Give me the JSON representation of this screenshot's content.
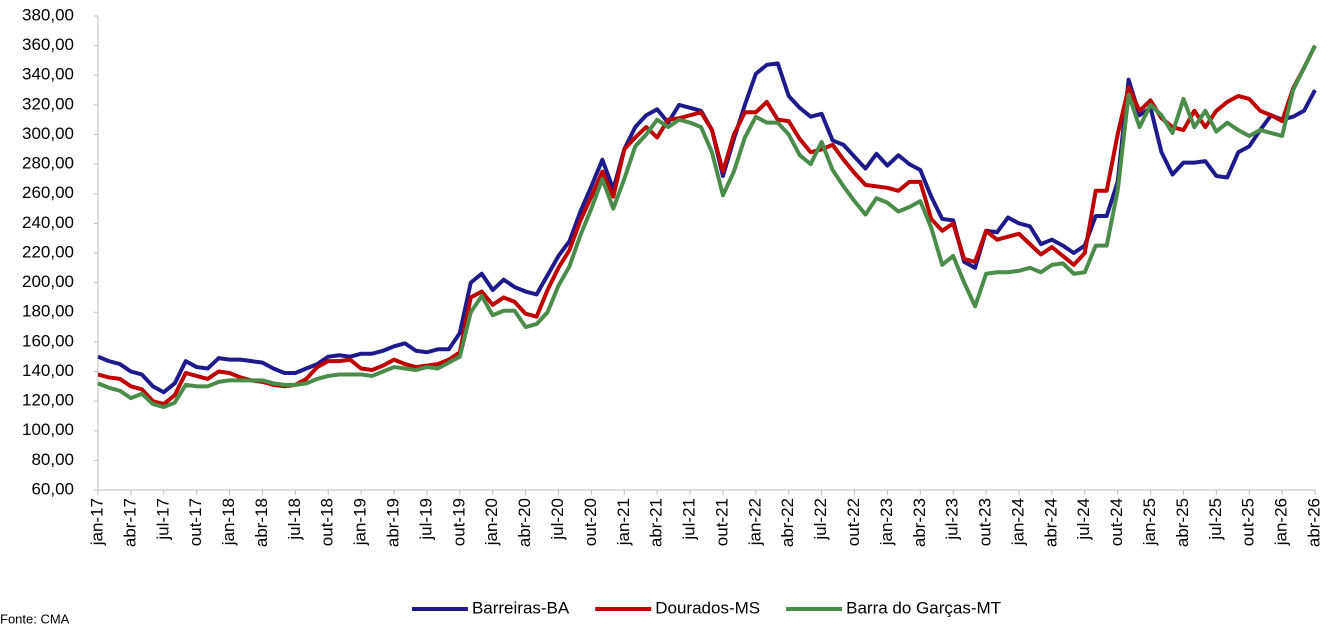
{
  "chart_data": {
    "type": "line",
    "categories": [
      "jan-17",
      null,
      null,
      "abr-17",
      null,
      null,
      "jul-17",
      null,
      null,
      "out-17",
      null,
      null,
      "jan-18",
      null,
      null,
      "abr-18",
      null,
      null,
      "jul-18",
      null,
      null,
      "out-18",
      null,
      null,
      "jan-19",
      null,
      null,
      "abr-19",
      null,
      null,
      "jul-19",
      null,
      null,
      "out-19",
      null,
      null,
      "jan-20",
      null,
      null,
      "abr-20",
      null,
      null,
      "jul-20",
      null,
      null,
      "out-20",
      null,
      null,
      "jan-21",
      null,
      null,
      "abr-21",
      null,
      null,
      "jul-21",
      null,
      null,
      "out-21",
      null,
      null,
      "jan-22",
      null,
      null,
      "abr-22",
      null,
      null,
      "jul-22",
      null,
      null,
      "out-22",
      null,
      null,
      "jan-23",
      null,
      null,
      "abr-23",
      null,
      null,
      "jul-23",
      null,
      null,
      "out-23",
      null,
      null,
      "jan-24",
      null,
      null,
      "abr-24",
      null,
      null,
      "jul-24",
      null,
      null,
      "out-24",
      null,
      null,
      "jan-25",
      null,
      null,
      "abr-25",
      null,
      null,
      "jul-25",
      null,
      null,
      "out-25",
      null,
      null,
      "jan-26",
      null,
      null,
      "abr-26"
    ],
    "series": [
      {
        "name": "Barreiras-BA",
        "color": "#1f1a8c",
        "values": [
          150,
          147,
          145,
          140,
          138,
          130,
          126,
          132,
          147,
          143,
          142,
          149,
          148,
          148,
          147,
          146,
          142,
          139,
          139,
          142,
          145,
          150,
          151,
          150,
          152,
          152,
          154,
          157,
          159,
          154,
          153,
          155,
          155,
          166,
          200,
          206,
          195,
          202,
          197,
          194,
          192,
          205,
          218,
          228,
          248,
          265,
          283,
          263,
          290,
          305,
          313,
          317,
          308,
          320,
          318,
          316,
          303,
          272,
          297,
          320,
          341,
          347,
          348,
          326,
          318,
          312,
          314,
          296,
          293,
          285,
          277,
          287,
          279,
          286,
          280,
          276,
          258,
          243,
          242,
          214,
          210,
          235,
          234,
          244,
          240,
          238,
          226,
          229,
          225,
          220,
          225,
          245,
          245,
          268,
          337,
          313,
          318,
          288,
          273,
          281,
          281,
          282,
          272,
          271,
          288,
          292,
          303,
          313,
          310,
          312,
          316,
          330
        ]
      },
      {
        "name": "Dourados-MS",
        "color": "#c00000",
        "values": [
          138,
          136,
          135,
          130,
          128,
          120,
          118,
          124,
          139,
          137,
          135,
          140,
          139,
          136,
          134,
          133,
          131,
          130,
          131,
          135,
          143,
          147,
          147,
          148,
          142,
          141,
          144,
          148,
          145,
          143,
          144,
          145,
          148,
          153,
          190,
          194,
          185,
          190,
          187,
          179,
          177,
          195,
          210,
          222,
          242,
          258,
          275,
          258,
          290,
          298,
          305,
          298,
          310,
          311,
          313,
          315,
          303,
          275,
          300,
          315,
          315,
          322,
          310,
          309,
          297,
          288,
          290,
          293,
          283,
          274,
          266,
          265,
          264,
          262,
          268,
          268,
          243,
          235,
          240,
          216,
          214,
          235,
          229,
          231,
          233,
          226,
          219,
          224,
          218,
          212,
          220,
          262,
          262,
          300,
          332,
          316,
          323,
          311,
          305,
          303,
          316,
          305,
          316,
          322,
          326,
          324,
          316,
          313,
          309,
          331,
          345,
          360
        ]
      },
      {
        "name": "Barra do Garças-MT",
        "color": "#4a8c4a",
        "values": [
          132,
          129,
          127,
          122,
          125,
          118,
          116,
          119,
          131,
          130,
          130,
          133,
          134,
          134,
          134,
          134,
          132,
          131,
          131,
          132,
          135,
          137,
          138,
          138,
          138,
          137,
          140,
          143,
          142,
          141,
          143,
          142,
          146,
          150,
          180,
          191,
          178,
          181,
          181,
          170,
          172,
          180,
          198,
          211,
          232,
          250,
          270,
          250,
          270,
          292,
          300,
          310,
          305,
          310,
          308,
          305,
          288,
          259,
          275,
          298,
          312,
          308,
          308,
          300,
          286,
          280,
          295,
          276,
          265,
          255,
          246,
          257,
          254,
          248,
          251,
          255,
          237,
          212,
          218,
          200,
          184,
          206,
          207,
          207,
          208,
          210,
          207,
          212,
          213,
          206,
          207,
          225,
          225,
          262,
          327,
          305,
          320,
          313,
          301,
          324,
          305,
          316,
          302,
          308,
          303,
          299,
          303,
          301,
          299,
          330,
          345,
          360
        ]
      }
    ],
    "ylim": [
      60,
      380
    ],
    "yticks": [
      {
        "value": 60,
        "label": "60,00"
      },
      {
        "value": 80,
        "label": "80,00"
      },
      {
        "value": 100,
        "label": "100,00"
      },
      {
        "value": 120,
        "label": "120,00"
      },
      {
        "value": 140,
        "label": "140,00"
      },
      {
        "value": 160,
        "label": "160,00"
      },
      {
        "value": 180,
        "label": "180,00"
      },
      {
        "value": 200,
        "label": "200,00"
      },
      {
        "value": 220,
        "label": "220,00"
      },
      {
        "value": 240,
        "label": "240,00"
      },
      {
        "value": 260,
        "label": "260,00"
      },
      {
        "value": 280,
        "label": "280,00"
      },
      {
        "value": 300,
        "label": "300,00"
      },
      {
        "value": 320,
        "label": "320,00"
      },
      {
        "value": 340,
        "label": "340,00"
      },
      {
        "value": 360,
        "label": "360,00"
      },
      {
        "value": 380,
        "label": "380,00"
      }
    ],
    "legend": "bottom",
    "source": "Fonte: CMA"
  }
}
